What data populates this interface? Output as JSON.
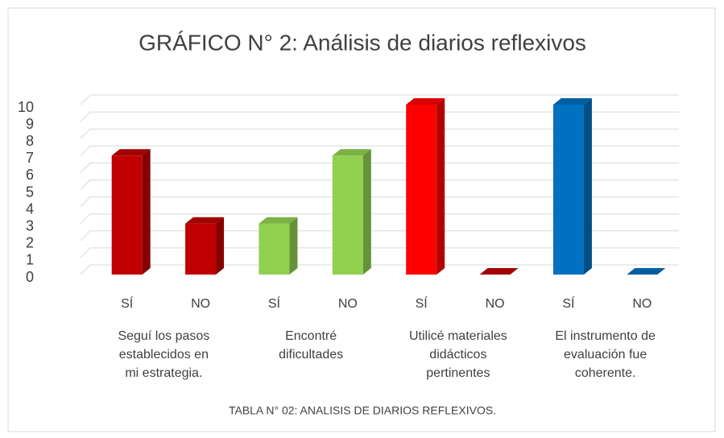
{
  "chart_data": {
    "type": "bar",
    "title": "GRÁFICO N° 2: Análisis de diarios reflexivos",
    "categories": [
      "SÍ",
      "NO",
      "SÍ",
      "NO",
      "SÍ",
      "NO",
      "SÍ",
      "NO"
    ],
    "values": [
      7,
      3,
      3,
      7,
      10,
      0,
      10,
      0
    ],
    "colors": [
      "#C00000",
      "#C00000",
      "#92D050",
      "#92D050",
      "#FF0000",
      "#C00000",
      "#0070C0",
      "#0070C0"
    ],
    "groups": [
      [
        "Seguí los pasos",
        "establecidos en",
        "mi estrategia."
      ],
      [
        "Encontré",
        "dificultades"
      ],
      [
        "Utilicé materiales",
        "didácticos",
        "pertinentes"
      ],
      [
        "El instrumento de",
        "evaluación fue",
        "coherente."
      ]
    ],
    "ylim": [
      0,
      10
    ],
    "yticks": [
      0,
      1,
      2,
      3,
      4,
      5,
      6,
      7,
      8,
      9,
      10
    ],
    "grid": true,
    "caption": "TABLA N° 02: ANALISIS DE DIARIOS REFLEXIVOS."
  }
}
